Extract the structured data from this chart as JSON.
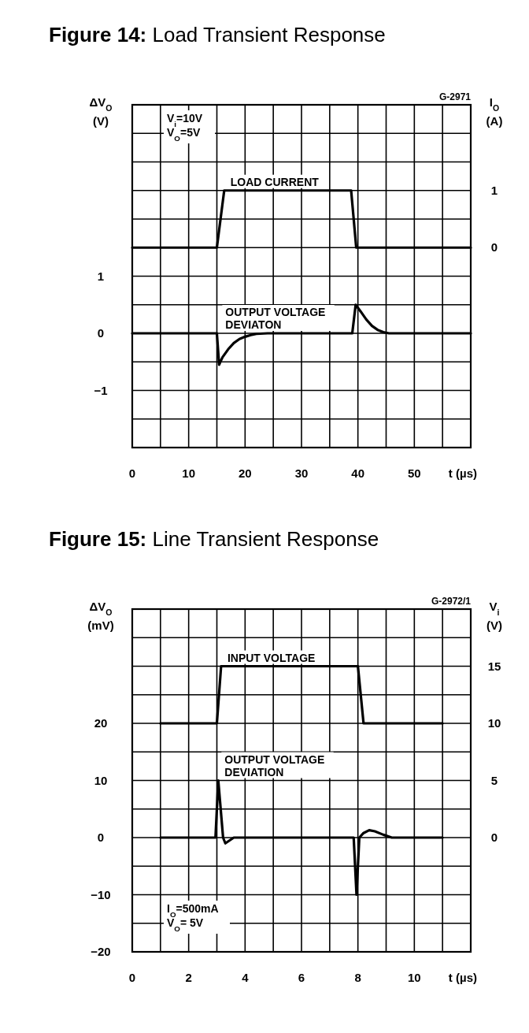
{
  "chart_data": [
    {
      "type": "line",
      "title": "Figure 14: Load Transient Response",
      "xlabel": "t (µs)",
      "ylabel": "ΔV$_{O}$ (V)",
      "y2label": "I$_{O}$ (A)",
      "annotations": [
        "G-2971",
        "V$_{i}$=10V",
        "V$_{O}$=5V"
      ],
      "xlim": [
        0,
        60
      ],
      "xticks": [
        0,
        {
          "value": 5,
          "label": null
        },
        10,
        {
          "value": 15,
          "label": null
        },
        20,
        {
          "value": 25,
          "label": null
        },
        30,
        {
          "value": 35,
          "label": null
        },
        40,
        {
          "value": 45,
          "label": null
        },
        50,
        {
          "value": 55,
          "label": null
        },
        {
          "value": 60,
          "label": null
        }
      ],
      "ylim": [
        -2,
        4
      ],
      "yticks": [
        {
          "value": -2,
          "label": null
        },
        {
          "value": -1.5,
          "label": null
        },
        -1,
        {
          "value": -0.5,
          "label": null
        },
        0,
        {
          "value": 0.5,
          "label": null
        },
        1,
        {
          "value": 1.5,
          "label": null
        },
        {
          "value": 2,
          "label": null
        },
        {
          "value": 2.5,
          "label": null
        },
        {
          "value": 3,
          "label": null
        },
        {
          "value": 3.5,
          "label": null
        },
        {
          "value": 4,
          "label": null
        }
      ],
      "y2lim": [
        -3.5,
        2.5
      ],
      "y2ticks": [
        0,
        1
      ],
      "grid": true,
      "series": [
        {
          "name": "LOAD CURRENT",
          "color": "#000000",
          "axis": "y2",
          "x": [
            0,
            15,
            16.3,
            38.8,
            39.7,
            60
          ],
          "values": [
            0,
            0,
            1,
            1,
            0,
            0
          ]
        },
        {
          "name": "OUTPUT VOLTAGE DEVIATON",
          "color": "#000000",
          "x": [
            0,
            15,
            15.4,
            16,
            17,
            18,
            19,
            20,
            21,
            22,
            24,
            39,
            39.6,
            40.5,
            41.5,
            42.5,
            43.5,
            44.5,
            45.5,
            60
          ],
          "values": [
            0,
            0,
            -0.55,
            -0.42,
            -0.28,
            -0.17,
            -0.1,
            -0.06,
            -0.03,
            -0.01,
            0,
            0,
            0.5,
            0.38,
            0.24,
            0.13,
            0.06,
            0.02,
            0,
            0
          ]
        }
      ]
    },
    {
      "type": "line",
      "title": "Figure 15: Line Transient Response",
      "xlabel": "t (µs)",
      "ylabel": "ΔV$_{O}$ (mV)",
      "y2label": "V$_{i}$ (V)",
      "annotations": [
        "G-2972/1",
        "I$_{O}$=500mA",
        "V$_{O}$= 5V"
      ],
      "xlim": [
        0,
        12
      ],
      "xticks": [
        0,
        {
          "value": 1,
          "label": null
        },
        2,
        {
          "value": 3,
          "label": null
        },
        4,
        {
          "value": 5,
          "label": null
        },
        6,
        {
          "value": 7,
          "label": null
        },
        8,
        {
          "value": 9,
          "label": null
        },
        10,
        {
          "value": 11,
          "label": null
        },
        {
          "value": 12,
          "label": null
        }
      ],
      "ylim": [
        -20,
        40
      ],
      "yticks": [
        -20,
        {
          "value": -15,
          "label": null
        },
        -10,
        {
          "value": -5,
          "label": null
        },
        0,
        {
          "value": 5,
          "label": null
        },
        10,
        {
          "value": 15,
          "label": null
        },
        20,
        {
          "value": 25,
          "label": null
        },
        {
          "value": 30,
          "label": null
        },
        {
          "value": 35,
          "label": null
        },
        {
          "value": 40,
          "label": null
        }
      ],
      "y2lim": [
        -10,
        20
      ],
      "y2ticks": [
        0,
        5,
        10,
        15
      ],
      "grid": true,
      "series": [
        {
          "name": "INPUT VOLTAGE",
          "color": "#000000",
          "axis": "y2",
          "x": [
            1,
            3,
            3.15,
            8,
            8.2,
            11
          ],
          "values": [
            10,
            10,
            15,
            15,
            10,
            10
          ]
        },
        {
          "name": "OUTPUT VOLTAGE DEVIATION",
          "color": "#000000",
          "x": [
            1,
            2.95,
            3.05,
            3.22,
            3.3,
            3.6,
            7.85,
            7.95,
            8.05,
            8.2,
            8.4,
            8.6,
            8.9,
            9.2,
            11
          ],
          "values": [
            0,
            0,
            10,
            0,
            -1,
            0,
            0,
            -10,
            0,
            0.8,
            1.3,
            1.1,
            0.5,
            0,
            0
          ]
        }
      ]
    }
  ]
}
